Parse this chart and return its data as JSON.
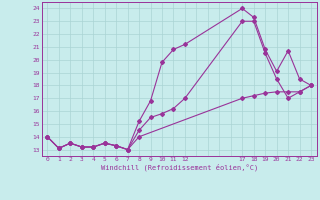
{
  "xlabel": "Windchill (Refroidissement éolien,°C)",
  "bg_color": "#c8ecec",
  "grid_color": "#aad4d4",
  "line_color": "#993399",
  "line1_x": [
    0,
    1,
    2,
    3,
    4,
    5,
    6,
    7,
    8,
    9,
    10,
    11,
    12,
    17,
    18,
    19,
    20,
    21,
    22,
    23
  ],
  "line1_y": [
    14,
    13.1,
    13.5,
    13.2,
    13.2,
    13.5,
    13.3,
    13.0,
    15.2,
    16.8,
    19.8,
    20.8,
    21.2,
    24.0,
    23.3,
    20.8,
    19.1,
    20.7,
    18.5,
    18.0
  ],
  "line2_x": [
    0,
    1,
    2,
    3,
    4,
    5,
    6,
    7,
    8,
    9,
    10,
    11,
    12,
    17,
    18,
    19,
    20,
    21,
    22,
    23
  ],
  "line2_y": [
    14,
    13.1,
    13.5,
    13.2,
    13.2,
    13.5,
    13.3,
    13.0,
    14.5,
    15.5,
    15.8,
    16.2,
    17.0,
    23.0,
    23.0,
    20.5,
    18.5,
    17.0,
    17.5,
    18.0
  ],
  "line3_x": [
    0,
    1,
    2,
    3,
    4,
    5,
    6,
    7,
    8,
    17,
    18,
    19,
    20,
    21,
    22,
    23
  ],
  "line3_y": [
    14,
    13.1,
    13.5,
    13.2,
    13.2,
    13.5,
    13.3,
    13.0,
    14.0,
    17.0,
    17.2,
    17.4,
    17.5,
    17.5,
    17.5,
    18.0
  ],
  "xlim": [
    -0.5,
    23.5
  ],
  "ylim": [
    12.5,
    24.5
  ],
  "xtick_positions": [
    0,
    1,
    2,
    3,
    4,
    5,
    6,
    7,
    8,
    9,
    10,
    11,
    12,
    17,
    18,
    19,
    20,
    21,
    22,
    23
  ],
  "xtick_labels": [
    "0",
    "1",
    "2",
    "3",
    "4",
    "5",
    "6",
    "7",
    "8",
    "9",
    "10",
    "11",
    "12",
    "17",
    "18",
    "19",
    "20",
    "21",
    "22",
    "23"
  ],
  "yticks": [
    13,
    14,
    15,
    16,
    17,
    18,
    19,
    20,
    21,
    22,
    23,
    24
  ],
  "ms": 2.0,
  "lw": 0.8
}
